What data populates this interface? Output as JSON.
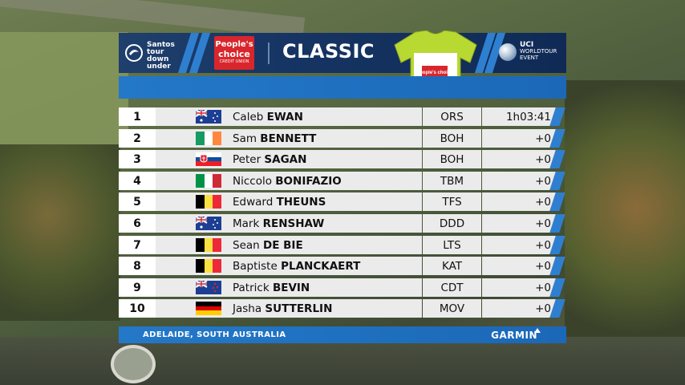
{
  "header": {
    "sponsor_left_lines": [
      "Santos",
      "tour",
      "down",
      "under"
    ],
    "sponsor_mid_lines": [
      "People's",
      "choice",
      "CREDIT UNION"
    ],
    "title": "CLASSIC",
    "jersey_sponsor": "People's choice",
    "uci_lines": [
      "UCI",
      "WORLDTOUR",
      "EVENT"
    ]
  },
  "standings": [
    {
      "pos": "1",
      "first": "Caleb",
      "last": "EWAN",
      "team": "ORS",
      "time": "1h03:41",
      "flag": "australia"
    },
    {
      "pos": "2",
      "first": "Sam",
      "last": "BENNETT",
      "team": "BOH",
      "time": "+0",
      "flag": "ireland"
    },
    {
      "pos": "3",
      "first": "Peter",
      "last": "SAGAN",
      "team": "BOH",
      "time": "+0",
      "flag": "slovakia"
    },
    {
      "pos": "4",
      "first": "Niccolo",
      "last": "BONIFAZIO",
      "team": "TBM",
      "time": "+0",
      "flag": "italy"
    },
    {
      "pos": "5",
      "first": "Edward",
      "last": "THEUNS",
      "team": "TFS",
      "time": "+0",
      "flag": "belgium"
    },
    {
      "pos": "6",
      "first": "Mark",
      "last": "RENSHAW",
      "team": "DDD",
      "time": "+0",
      "flag": "australia"
    },
    {
      "pos": "7",
      "first": "Sean",
      "last": "DE BIE",
      "team": "LTS",
      "time": "+0",
      "flag": "belgium"
    },
    {
      "pos": "8",
      "first": "Baptiste",
      "last": "PLANCKAERT",
      "team": "KAT",
      "time": "+0",
      "flag": "belgium"
    },
    {
      "pos": "9",
      "first": "Patrick",
      "last": "BEVIN",
      "team": "CDT",
      "time": "+0",
      "flag": "new-zealand"
    },
    {
      "pos": "10",
      "first": "Jasha",
      "last": "SUTTERLIN",
      "team": "MOV",
      "time": "+0",
      "flag": "germany"
    }
  ],
  "footer": {
    "location": "ADELAIDE, SOUTH AUSTRALIA",
    "brand": "GARMIN"
  },
  "colors": {
    "header_bg": "#163463",
    "accent_blue": "#2478c8",
    "row_bg": "#ebebeb",
    "jersey_lime": "#b8d832"
  }
}
